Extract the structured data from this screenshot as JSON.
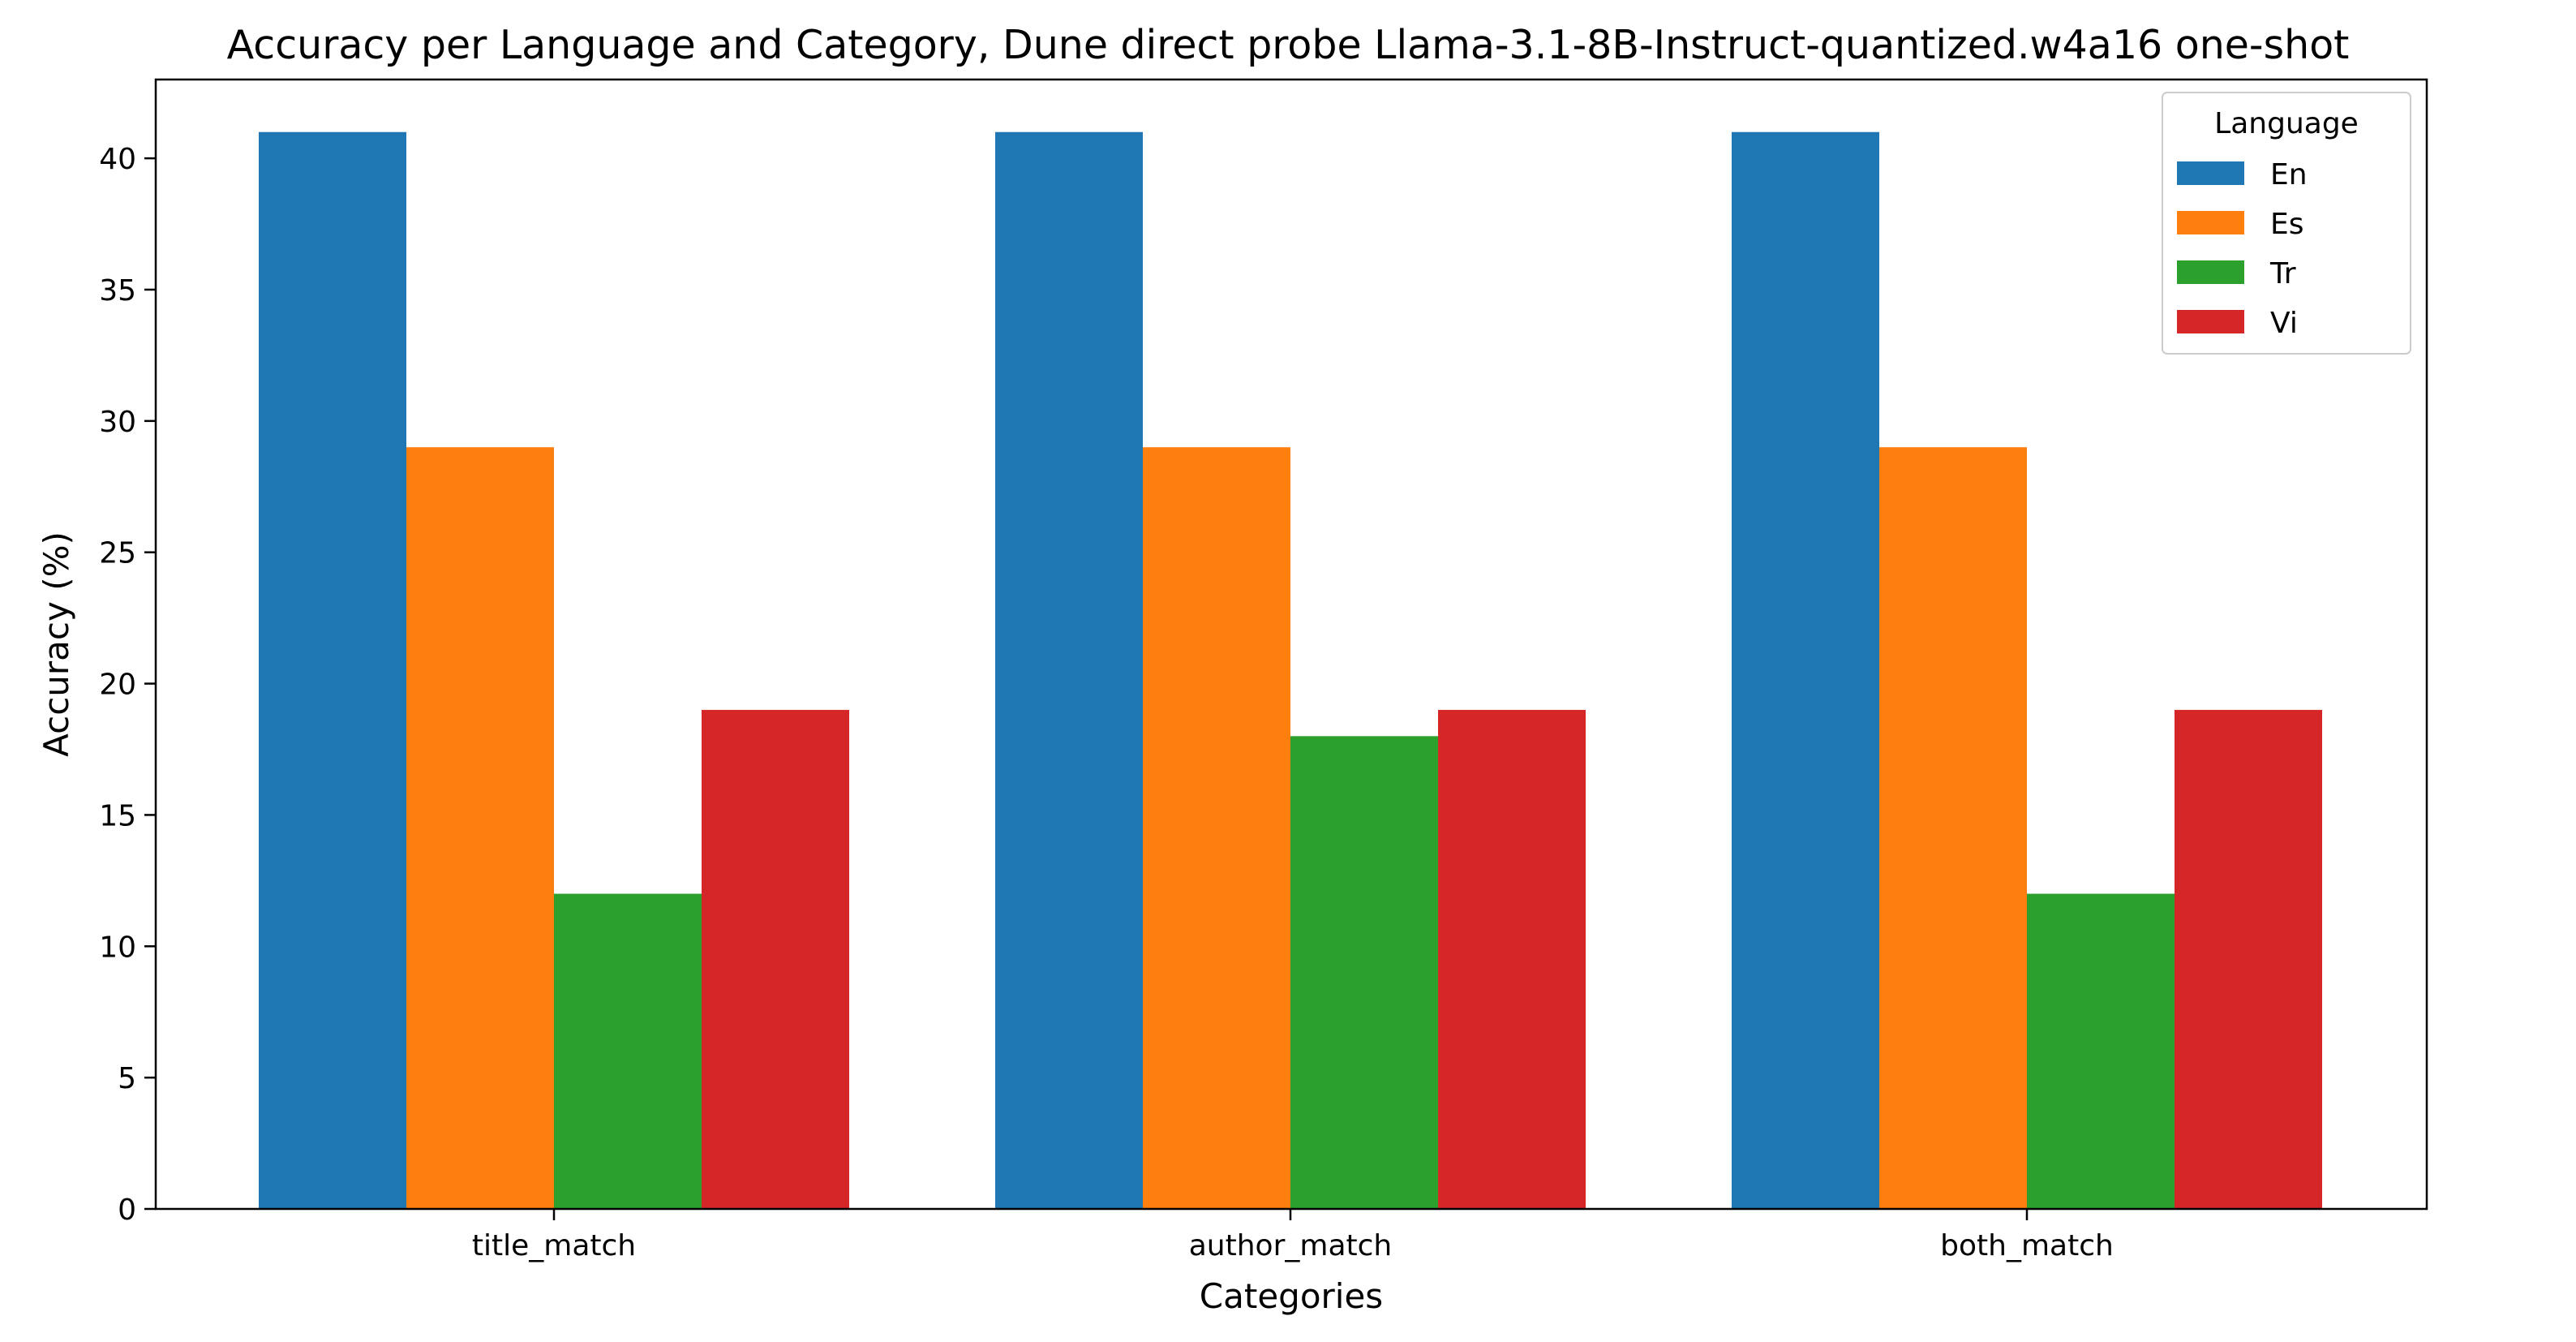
{
  "chart_data": {
    "type": "bar",
    "title": "Accuracy per Language and Category, Dune direct probe Llama-3.1-8B-Instruct-quantized.w4a16 one-shot",
    "xlabel": "Categories",
    "ylabel": "Accuracy (%)",
    "categories": [
      "title_match",
      "author_match",
      "both_match"
    ],
    "series": [
      {
        "name": "En",
        "color": "#1f77b4",
        "values": [
          41,
          41,
          41
        ]
      },
      {
        "name": "Es",
        "color": "#ff7f0e",
        "values": [
          29,
          29,
          29
        ]
      },
      {
        "name": "Tr",
        "color": "#2ca02c",
        "values": [
          12,
          18,
          12
        ]
      },
      {
        "name": "Vi",
        "color": "#d62728",
        "values": [
          19,
          19,
          19
        ]
      }
    ],
    "ylim": [
      0,
      43
    ],
    "yticks": [
      0,
      5,
      10,
      15,
      20,
      25,
      30,
      35,
      40
    ],
    "legend": {
      "title": "Language",
      "position": "top-right"
    },
    "grid": false
  }
}
